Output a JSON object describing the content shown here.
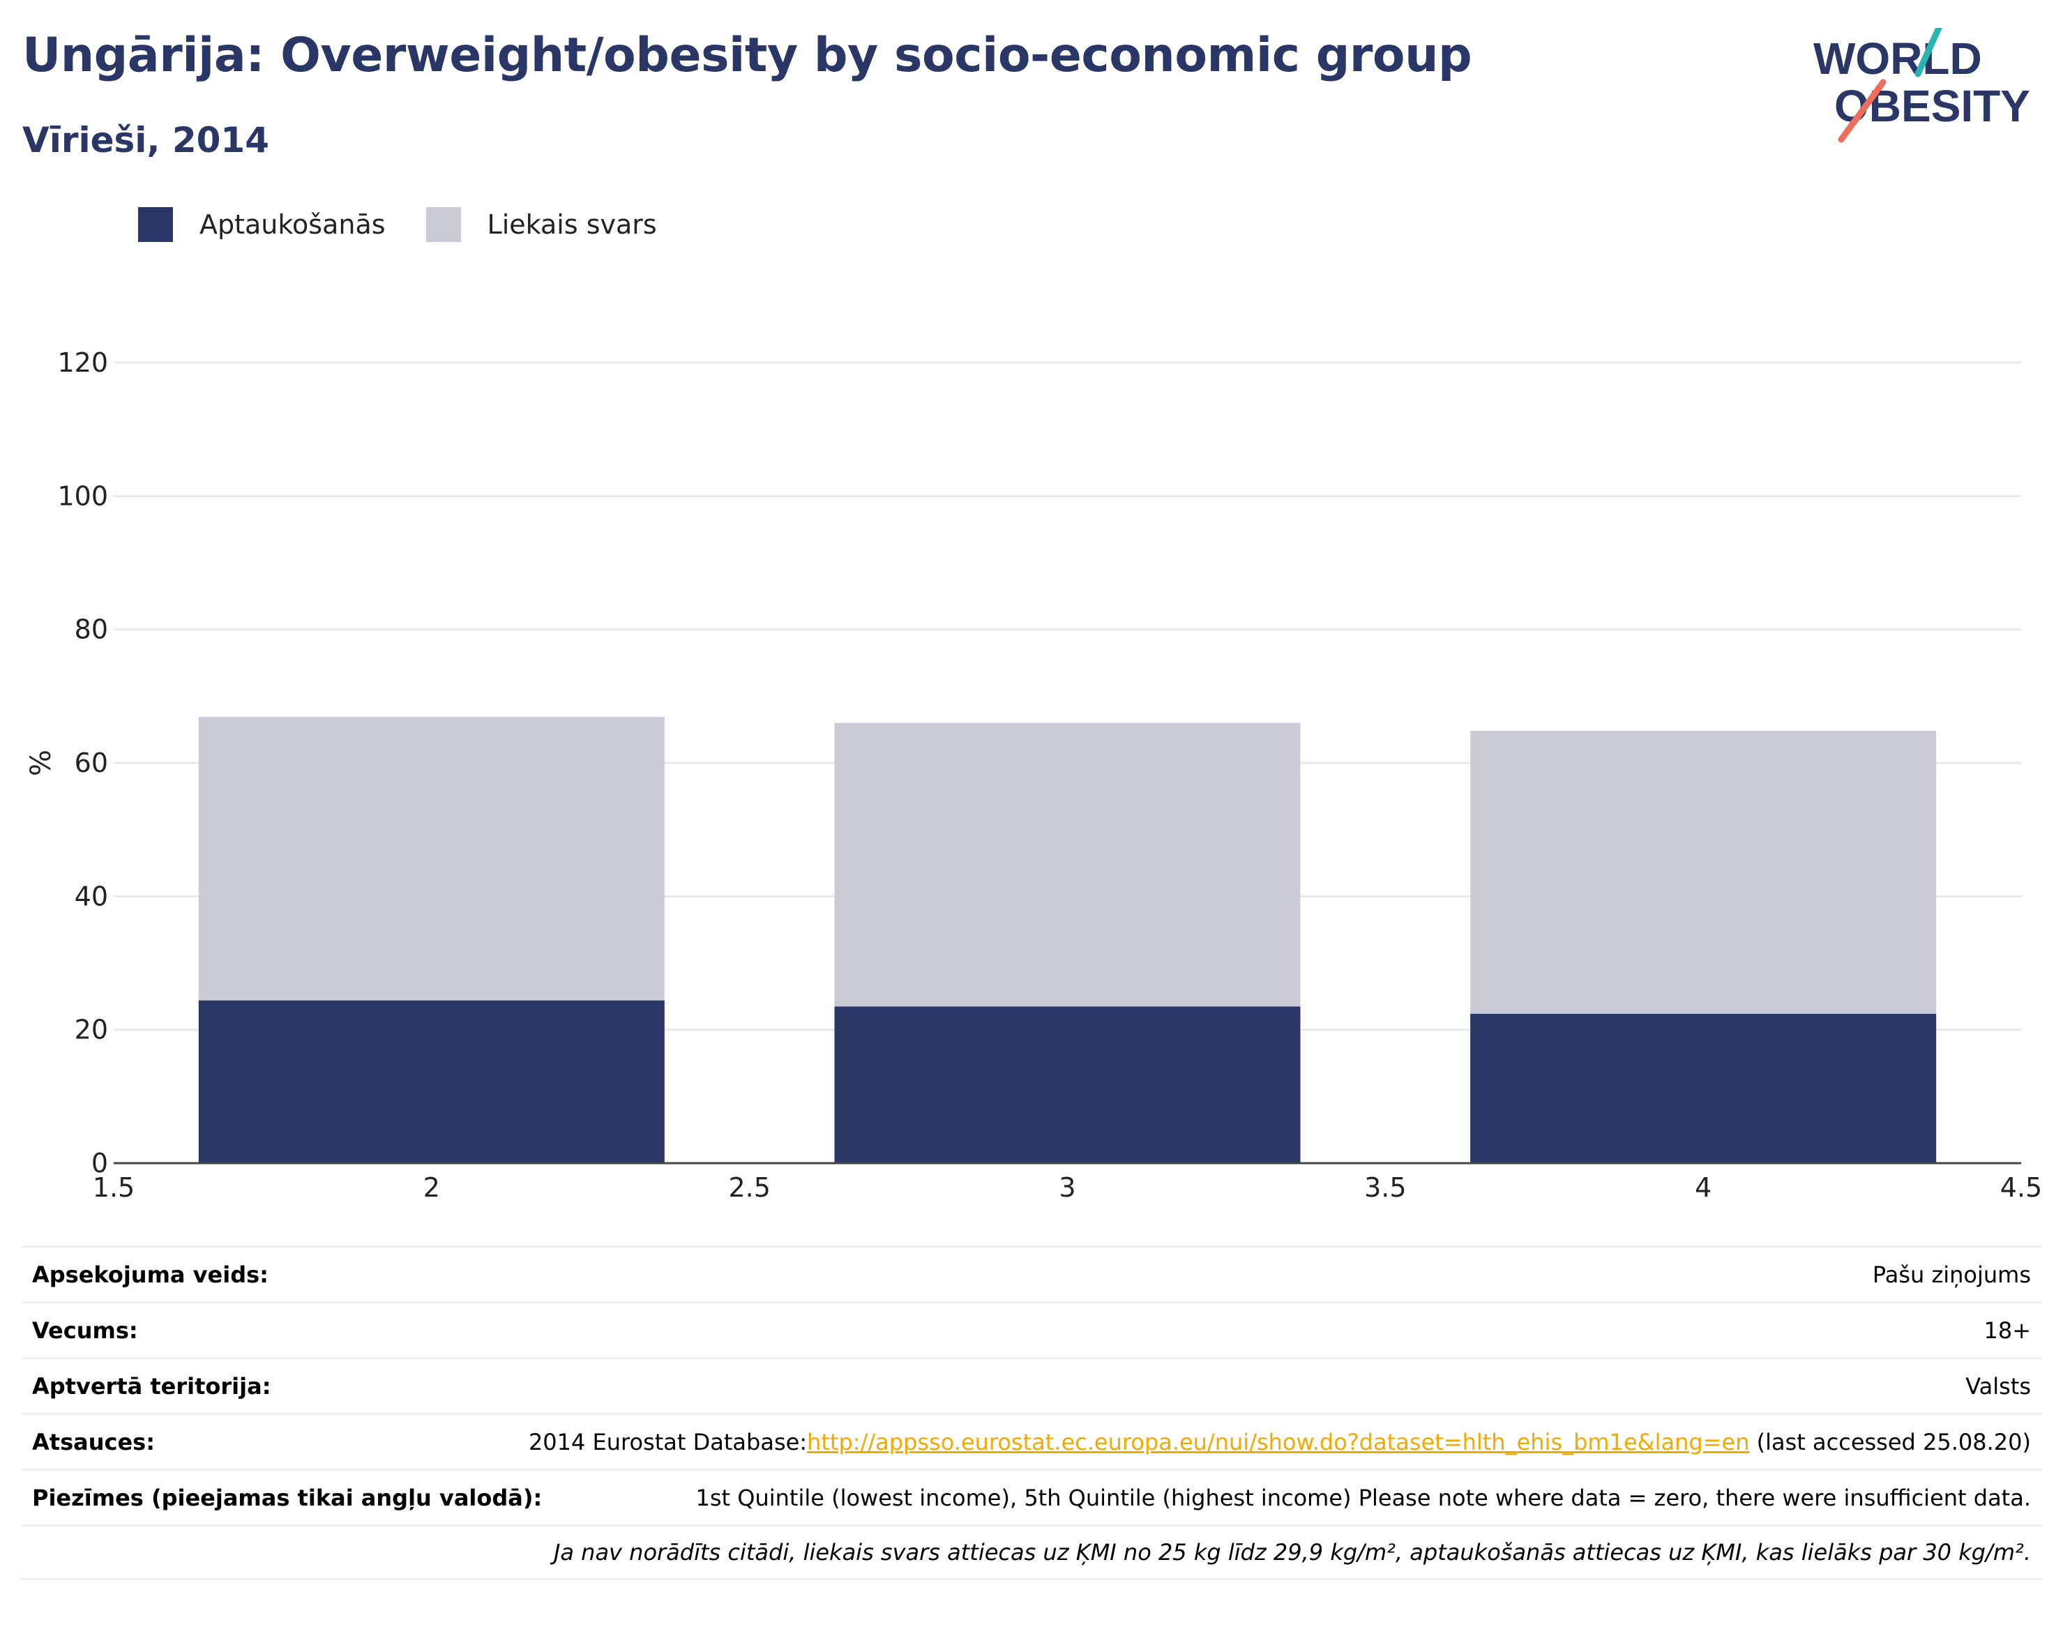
{
  "header": {
    "title": "Ungārija: Overweight/obesity by socio-economic group",
    "subtitle": "Vīrieši, 2014"
  },
  "logo": {
    "line1": "WORLD",
    "line2": "OBESITY"
  },
  "legend": [
    {
      "label": "Aptaukošanās",
      "color": "#2a3766"
    },
    {
      "label": "Liekais svars",
      "color": "#c9ccd7"
    }
  ],
  "chart_data": {
    "type": "bar",
    "stacked": true,
    "title": "",
    "xlabel": "",
    "ylabel": "%",
    "x": [
      2,
      3,
      4
    ],
    "xlim": [
      1.5,
      4.5
    ],
    "ylim": [
      0,
      120
    ],
    "x_ticks": [
      "1.5",
      "2",
      "2.5",
      "3",
      "3.5",
      "4",
      "4.5"
    ],
    "y_ticks": [
      "0",
      "20",
      "40",
      "60",
      "80",
      "100",
      "120"
    ],
    "grid": true,
    "legend_position": "top-left",
    "series": [
      {
        "name": "Aptaukošanās",
        "color": "#2a3766",
        "values": [
          24.4,
          23.5,
          22.4
        ]
      },
      {
        "name": "Liekais svars",
        "color": "#c9ccd7",
        "values": [
          42.5,
          42.5,
          42.4
        ]
      }
    ]
  },
  "info": {
    "rows": [
      {
        "label": "Apsekojuma veids:",
        "value": "Pašu ziņojums"
      },
      {
        "label": "Vecums:",
        "value": "18+"
      },
      {
        "label": "Aptvertā teritorija:",
        "value": "Valsts"
      }
    ],
    "references": {
      "label": "Atsauces:",
      "prefix": "2014 Eurostat Database:",
      "link": "http://appsso.eurostat.ec.europa.eu/nui/show.do?dataset=hlth_ehis_bm1e&lang=en",
      "suffix": " (last accessed 25.08.20)"
    },
    "notes": {
      "label": "Piezīmes (pieejamas tikai angļu valodā):",
      "value": "1st Quintile (lowest income), 5th Quintile (highest income) Please note where data = zero, there were insufficient data."
    },
    "footnote": "Ja nav norādīts citādi, liekais svars attiecas uz ĶMI no 25 kg līdz 29,9 kg/m², aptaukošanās attiecas uz ĶMI, kas lielāks par 30 kg/m²."
  }
}
